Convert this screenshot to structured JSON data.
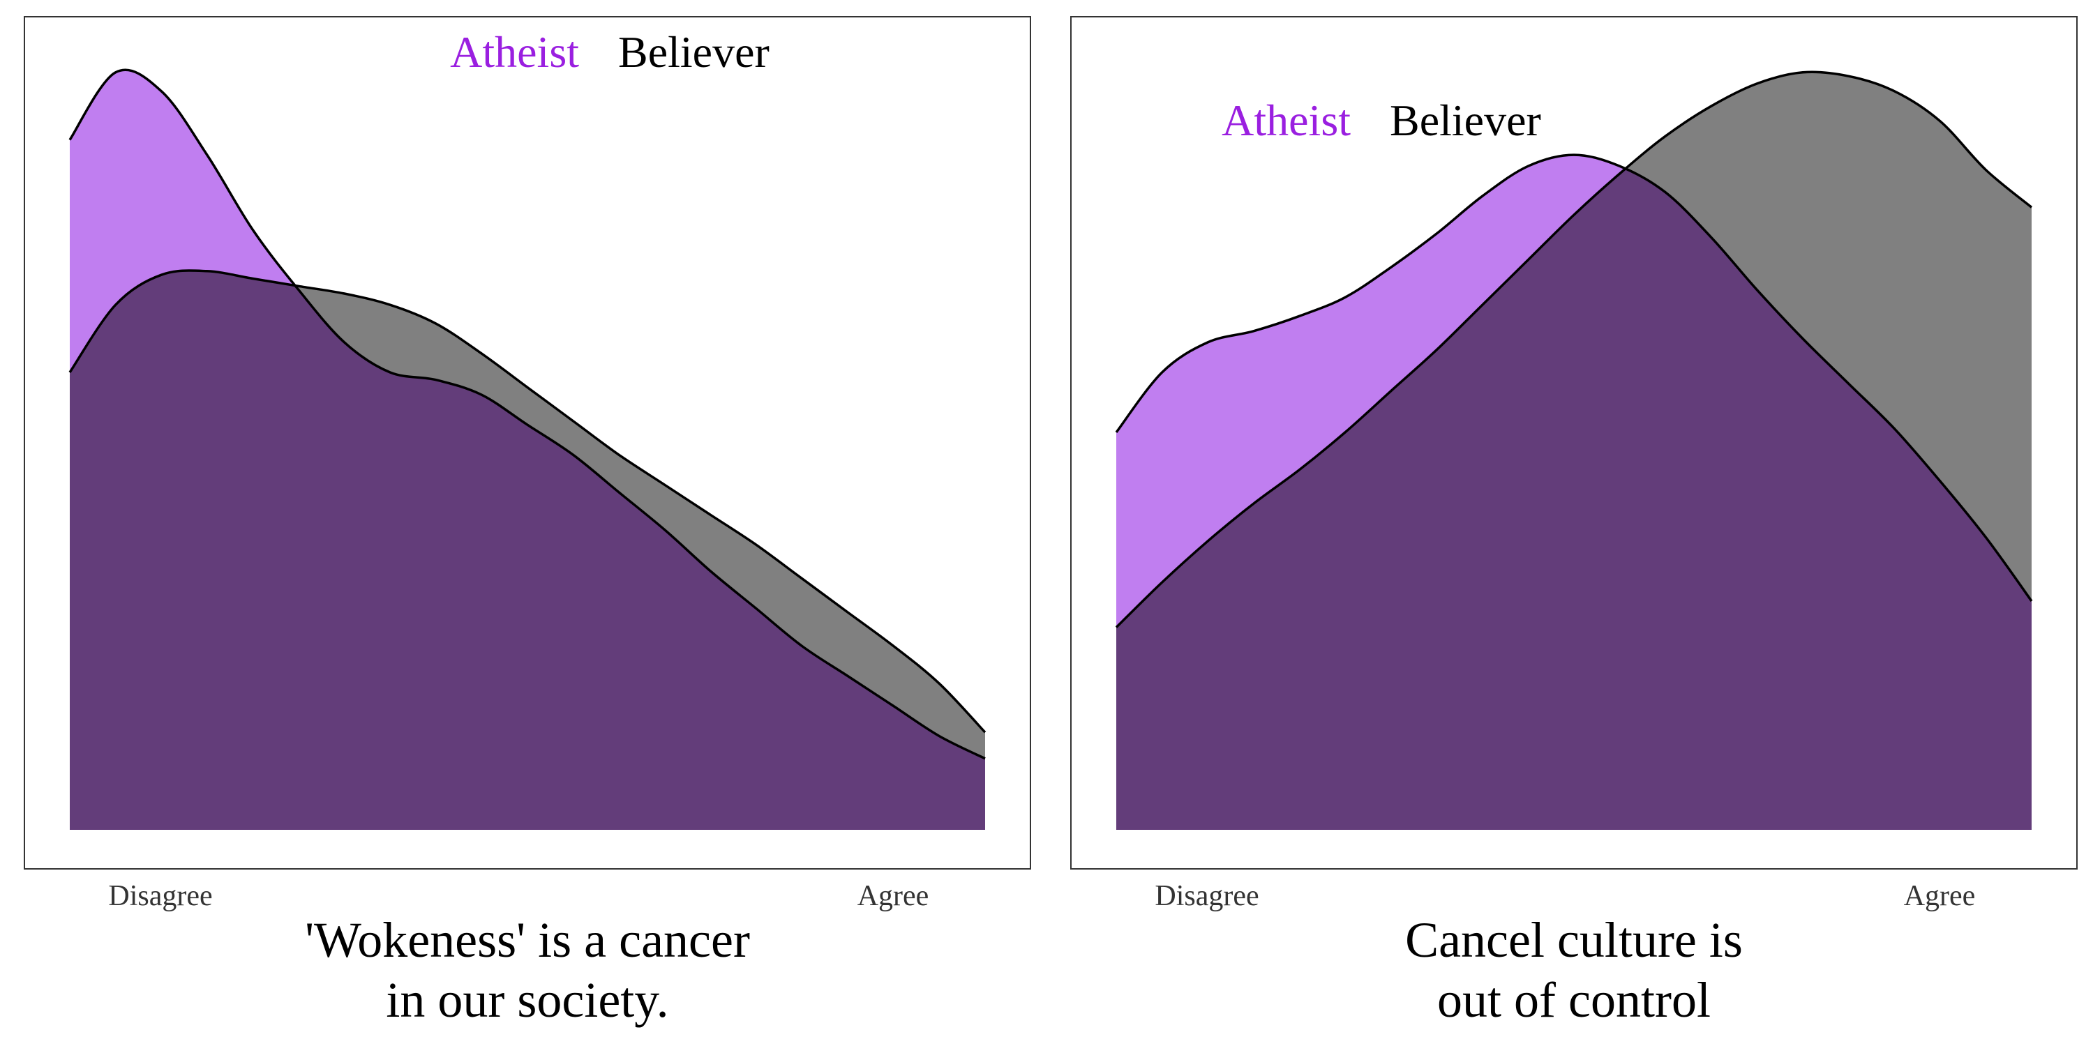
{
  "chart_data": [
    {
      "type": "area",
      "title": "'Wokeness' is a cancer\nin our society.",
      "title_lines": [
        "'Wokeness' is a cancer",
        "in our society."
      ],
      "x_tick_labels": [
        "Disagree",
        "Agree"
      ],
      "xlim": [
        0,
        1
      ],
      "ylim": [
        0,
        1.06
      ],
      "grid": false,
      "legend_placement": "top-center",
      "x": [
        0,
        0.05,
        0.1,
        0.15,
        0.2,
        0.25,
        0.3,
        0.35,
        0.4,
        0.45,
        0.5,
        0.55,
        0.6,
        0.65,
        0.7,
        0.75,
        0.8,
        0.85,
        0.9,
        0.95,
        1.0
      ],
      "series": [
        {
          "name": "Believer",
          "color": "#808080",
          "values": [
            0.61,
            0.7,
            0.74,
            0.745,
            0.735,
            0.725,
            0.715,
            0.7,
            0.675,
            0.635,
            0.59,
            0.545,
            0.5,
            0.46,
            0.42,
            0.38,
            0.335,
            0.29,
            0.245,
            0.195,
            0.13
          ]
        },
        {
          "name": "Atheist",
          "color": "#c07ef0",
          "values": [
            0.92,
            1.01,
            0.985,
            0.9,
            0.8,
            0.72,
            0.65,
            0.61,
            0.6,
            0.58,
            0.54,
            0.5,
            0.45,
            0.4,
            0.345,
            0.295,
            0.245,
            0.205,
            0.165,
            0.125,
            0.095
          ]
        }
      ]
    },
    {
      "type": "area",
      "title": "Cancel culture is\nout of control",
      "title_lines": [
        "Cancel culture is",
        "out of control"
      ],
      "x_tick_labels": [
        "Disagree",
        "Agree"
      ],
      "xlim": [
        0,
        1
      ],
      "ylim": [
        0,
        1.06
      ],
      "grid": false,
      "legend_placement": "top-left",
      "x": [
        0,
        0.05,
        0.1,
        0.15,
        0.2,
        0.25,
        0.3,
        0.35,
        0.4,
        0.45,
        0.5,
        0.55,
        0.6,
        0.65,
        0.7,
        0.75,
        0.8,
        0.85,
        0.9,
        0.95,
        1.0
      ],
      "series": [
        {
          "name": "Believer",
          "color": "#808080",
          "values": [
            0.27,
            0.33,
            0.385,
            0.435,
            0.48,
            0.53,
            0.585,
            0.64,
            0.7,
            0.76,
            0.82,
            0.875,
            0.925,
            0.965,
            0.995,
            1.01,
            1.005,
            0.985,
            0.945,
            0.88,
            0.83
          ]
        },
        {
          "name": "Atheist",
          "color": "#c07ef0",
          "values": [
            0.53,
            0.61,
            0.65,
            0.665,
            0.685,
            0.71,
            0.75,
            0.795,
            0.845,
            0.885,
            0.9,
            0.885,
            0.85,
            0.79,
            0.72,
            0.655,
            0.595,
            0.535,
            0.465,
            0.39,
            0.305
          ]
        }
      ]
    }
  ],
  "colors": {
    "overlap": "#633d7a",
    "atheist_label": "#9a1fe0",
    "believer_label": "#000000",
    "tick_label": "#333333"
  }
}
